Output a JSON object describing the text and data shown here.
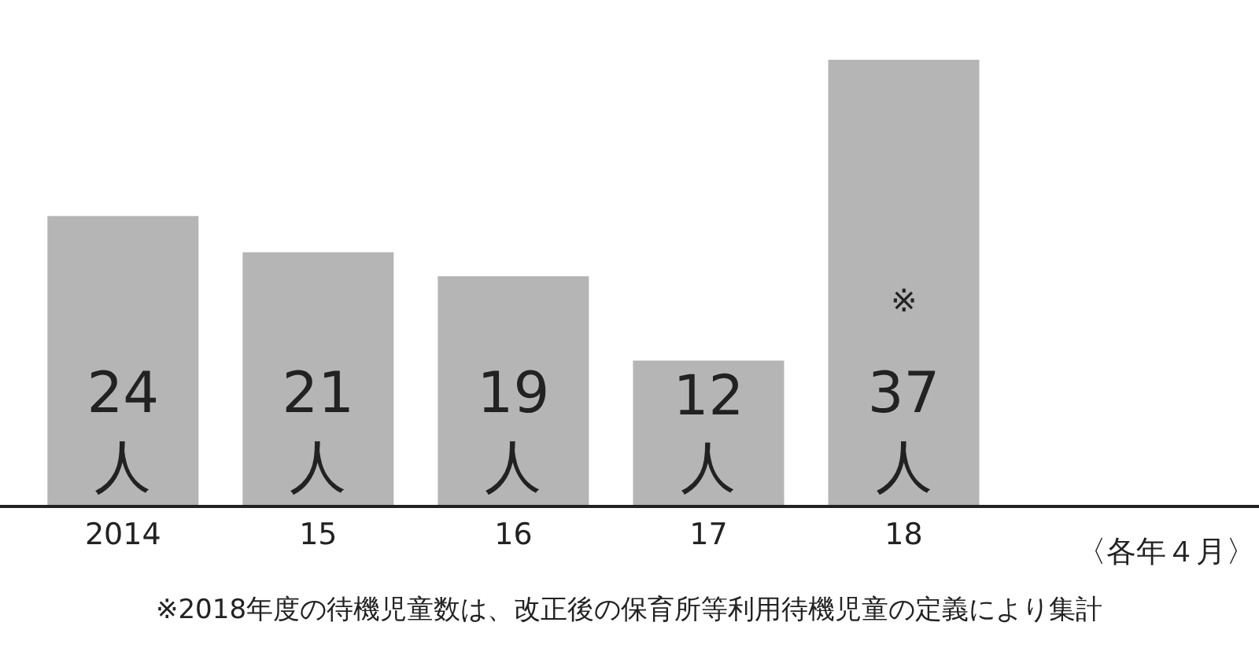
{
  "chart_data": {
    "type": "bar",
    "categories": [
      "2014",
      "15",
      "16",
      "17",
      "18"
    ],
    "values": [
      24,
      21,
      19,
      12,
      37
    ],
    "value_labels": [
      "24\n人",
      "21\n人",
      "19\n人",
      "12\n人",
      "37\n人"
    ],
    "color": "#b5b5b5",
    "xlabel": "〈各年４月〉",
    "annotations": [
      "※",
      "※2018年度の待機児童数は、改正後の保育所等利用待機児童の定義により集計"
    ],
    "legend": false
  }
}
